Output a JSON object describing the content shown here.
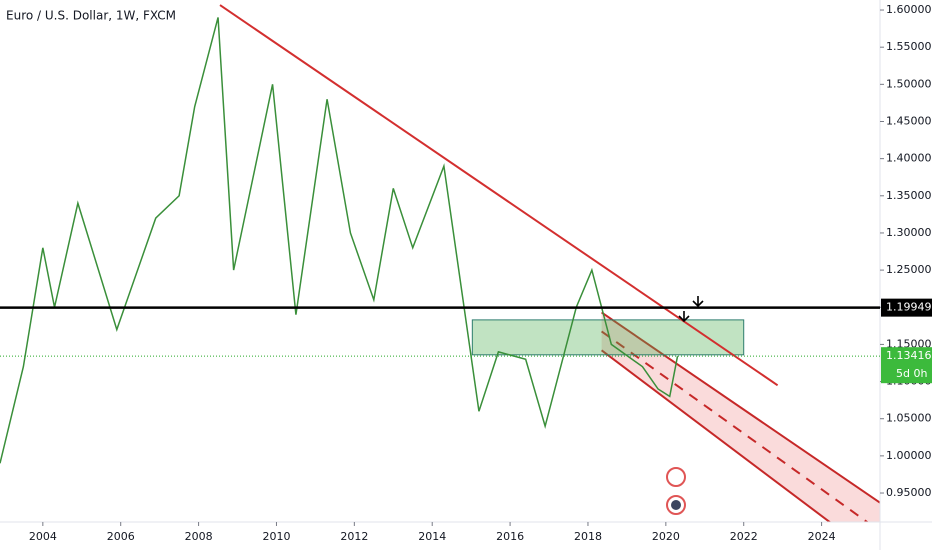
{
  "chart_data": {
    "type": "line",
    "title": "Euro / U.S. Dollar, 1W, FXCM",
    "x": [
      2002.9,
      2003.5,
      2004.0,
      2004.3,
      2004.9,
      2005.9,
      2006.9,
      2007.5,
      2007.9,
      2008.5,
      2008.9,
      2009.9,
      2010.5,
      2011.3,
      2011.9,
      2012.5,
      2013.0,
      2013.5,
      2014.3,
      2015.2,
      2015.7,
      2016.4,
      2016.9,
      2017.7,
      2018.1,
      2018.6,
      2019.4,
      2019.8,
      2020.1,
      2020.3
    ],
    "series": [
      {
        "color": "#3a8f3a",
        "values": [
          0.99,
          1.12,
          1.28,
          1.2,
          1.34,
          1.17,
          1.32,
          1.35,
          1.47,
          1.59,
          1.25,
          1.5,
          1.19,
          1.48,
          1.3,
          1.21,
          1.36,
          1.28,
          1.39,
          1.06,
          1.14,
          1.13,
          1.04,
          1.2,
          1.25,
          1.15,
          1.12,
          1.09,
          1.08,
          1.13416
        ]
      }
    ],
    "xlim": [
      2002.9,
      2025.5
    ],
    "ylim": [
      0.911,
      1.6135
    ],
    "xticks": [
      2004,
      2006,
      2008,
      2010,
      2012,
      2014,
      2016,
      2018,
      2020,
      2022,
      2024
    ],
    "yticks": [
      {
        "value": 0.95,
        "label": "0.95000"
      },
      {
        "value": 1.0,
        "label": "1.00000"
      },
      {
        "value": 1.05,
        "label": "1.05000"
      },
      {
        "value": 1.1,
        "label": "1.10000"
      },
      {
        "value": 1.15,
        "label": "1.15000"
      },
      {
        "value": 1.2,
        "label": "1.20000"
      },
      {
        "value": 1.25,
        "label": "1.25000"
      },
      {
        "value": 1.3,
        "label": "1.30000"
      },
      {
        "value": 1.35,
        "label": "1.35000"
      },
      {
        "value": 1.4,
        "label": "1.40000"
      },
      {
        "value": 1.45,
        "label": "1.45000"
      },
      {
        "value": 1.5,
        "label": "1.50000"
      },
      {
        "value": 1.55,
        "label": "1.55000"
      },
      {
        "value": 1.6,
        "label": "1.60000"
      }
    ],
    "resistance": {
      "value": 1.19949,
      "label": "1.19949"
    },
    "last_price": {
      "value": 1.13416,
      "label": "1.13416"
    },
    "countdown": "5d 0h",
    "trendline": {
      "x": [
        2008.55,
        2022.87
      ],
      "y": [
        1.6067,
        1.095
      ]
    },
    "zone": {
      "x": [
        2015.03,
        2022.0
      ],
      "y": [
        1.136,
        1.183
      ]
    },
    "channel": {
      "x": [
        2018.35,
        2025.5
      ],
      "upper": [
        1.193,
        0.937
      ],
      "lower": [
        1.142,
        0.86
      ]
    }
  }
}
